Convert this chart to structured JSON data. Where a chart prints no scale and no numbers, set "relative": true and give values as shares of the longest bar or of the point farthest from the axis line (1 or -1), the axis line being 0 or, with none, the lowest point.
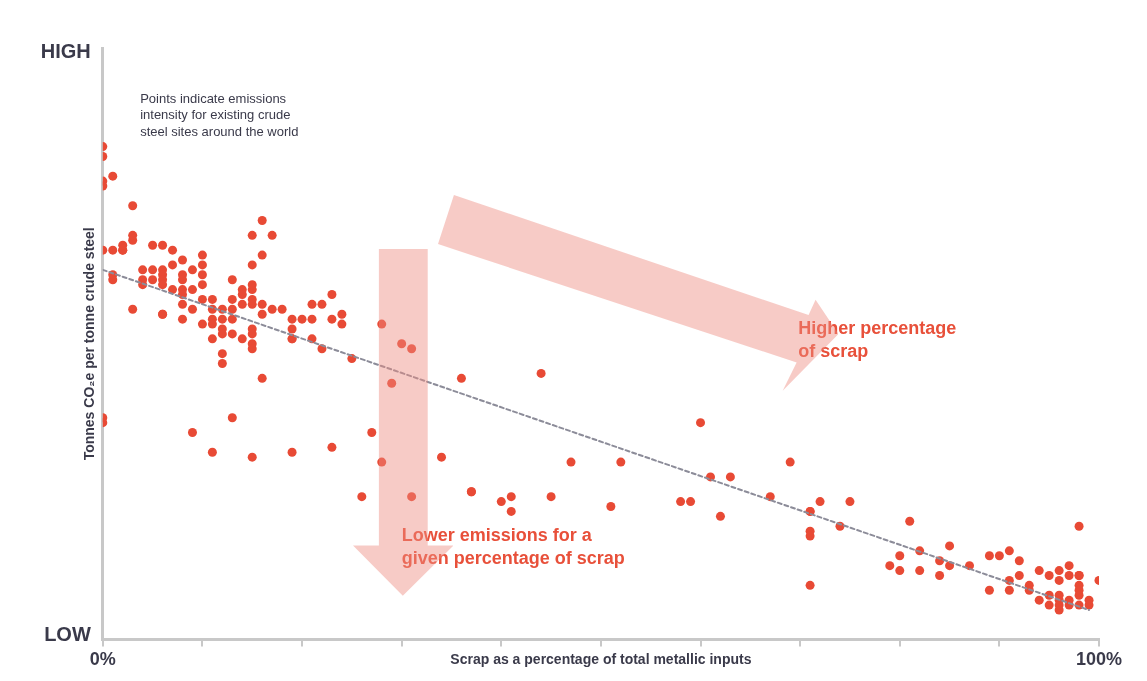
{
  "chart_data": {
    "type": "scatter",
    "xlabel": "Scrap as a percentage of total metallic inputs",
    "ylabel": "Tonnes CO₂e per tonne crude steel",
    "relative": true,
    "xlim": [
      0,
      100
    ],
    "xticks": [
      {
        "value": 0,
        "label": "0%"
      },
      {
        "value": 10,
        "label": null
      },
      {
        "value": 20,
        "label": null
      },
      {
        "value": 30,
        "label": null
      },
      {
        "value": 40,
        "label": null
      },
      {
        "value": 50,
        "label": null
      },
      {
        "value": 60,
        "label": null
      },
      {
        "value": 70,
        "label": null
      },
      {
        "value": 80,
        "label": null
      },
      {
        "value": 90,
        "label": null
      },
      {
        "value": 100,
        "label": "100%"
      }
    ],
    "grid": false,
    "legend": false,
    "marker": "circle",
    "annotations": [
      "HIGH",
      "LOW",
      "Points indicate emissions intensity for existing crude steel sites around the world",
      "Higher percentage of scrap",
      "Lower emissions for a given percentage of scrap"
    ],
    "series": [
      {
        "color": "#e84a35",
        "x": [
          0,
          0,
          0,
          0,
          1,
          3,
          0,
          1,
          2,
          2,
          2,
          3,
          3,
          5,
          6,
          7,
          8,
          7,
          10,
          10,
          9,
          10,
          4,
          1,
          1,
          4,
          5,
          6,
          6,
          6,
          4,
          3,
          5,
          6,
          7,
          8,
          8,
          8,
          8,
          8,
          8,
          6,
          6,
          9,
          10,
          10,
          9,
          11,
          11,
          11,
          12,
          13,
          13,
          12,
          13,
          10,
          11,
          12,
          12,
          13,
          11,
          12,
          12,
          14,
          14,
          13,
          14,
          15,
          15,
          15,
          15,
          16,
          17,
          16,
          15,
          15,
          16,
          16,
          17,
          18,
          19,
          20,
          21,
          19,
          19,
          19,
          21,
          22,
          21,
          22,
          23,
          23,
          24,
          24,
          25,
          15,
          15,
          15,
          15,
          14,
          16,
          28,
          30,
          31,
          29,
          36,
          44,
          27,
          28,
          34,
          26,
          31,
          37,
          37,
          41,
          40,
          41,
          45,
          47,
          52,
          51,
          60,
          58,
          59,
          61,
          63,
          62,
          67,
          11,
          13,
          9,
          15,
          19,
          23,
          0,
          0,
          69,
          71,
          71,
          72,
          75,
          71,
          71,
          71,
          74,
          81,
          82,
          85,
          80,
          79,
          80,
          82,
          84,
          85,
          84,
          87,
          89,
          90,
          91,
          92,
          92,
          91,
          89,
          91,
          94,
          93,
          93,
          98,
          97,
          95,
          96,
          96,
          97,
          98,
          98,
          98,
          98,
          100,
          94,
          95,
          95,
          96,
          96,
          97,
          98,
          96,
          96,
          97,
          98,
          99,
          99
        ],
        "values": [
          1.0,
          0.98,
          0.93,
          0.92,
          0.94,
          0.88,
          0.79,
          0.79,
          0.79,
          0.79,
          0.8,
          0.81,
          0.82,
          0.8,
          0.8,
          0.79,
          0.77,
          0.76,
          0.78,
          0.76,
          0.75,
          0.74,
          0.75,
          0.73,
          0.74,
          0.73,
          0.75,
          0.75,
          0.74,
          0.73,
          0.72,
          0.67,
          0.73,
          0.72,
          0.71,
          0.74,
          0.73,
          0.71,
          0.7,
          0.68,
          0.65,
          0.66,
          0.66,
          0.71,
          0.72,
          0.69,
          0.67,
          0.69,
          0.67,
          0.65,
          0.67,
          0.67,
          0.73,
          0.65,
          0.65,
          0.64,
          0.64,
          0.63,
          0.62,
          0.62,
          0.61,
          0.58,
          0.56,
          0.71,
          0.7,
          0.69,
          0.68,
          0.71,
          0.72,
          0.76,
          0.82,
          0.85,
          0.82,
          0.78,
          0.69,
          0.68,
          0.68,
          0.66,
          0.67,
          0.67,
          0.65,
          0.65,
          0.65,
          0.63,
          0.61,
          0.61,
          0.61,
          0.59,
          0.68,
          0.68,
          0.7,
          0.65,
          0.66,
          0.64,
          0.57,
          0.63,
          0.62,
          0.6,
          0.59,
          0.61,
          0.53,
          0.64,
          0.6,
          0.59,
          0.52,
          0.53,
          0.54,
          0.42,
          0.36,
          0.37,
          0.29,
          0.29,
          0.3,
          0.3,
          0.29,
          0.28,
          0.26,
          0.29,
          0.36,
          0.36,
          0.27,
          0.44,
          0.28,
          0.28,
          0.33,
          0.33,
          0.25,
          0.29,
          0.38,
          0.45,
          0.42,
          0.37,
          0.38,
          0.39,
          0.45,
          0.44,
          0.36,
          0.26,
          0.26,
          0.28,
          0.28,
          0.22,
          0.21,
          0.11,
          0.23,
          0.24,
          0.18,
          0.19,
          0.17,
          0.15,
          0.14,
          0.14,
          0.16,
          0.15,
          0.13,
          0.15,
          0.17,
          0.17,
          0.18,
          0.16,
          0.13,
          0.12,
          0.1,
          0.1,
          0.14,
          0.11,
          0.1,
          0.23,
          0.15,
          0.13,
          0.14,
          0.12,
          0.13,
          0.13,
          0.13,
          0.11,
          0.1,
          0.12,
          0.08,
          0.07,
          0.09,
          0.08,
          0.09,
          0.08,
          0.09,
          0.06,
          0.07,
          0.07,
          0.07,
          0.08,
          0.07
        ]
      },
      {
        "type": "line",
        "color": "#8c8c99",
        "line_style": "dashed",
        "marker": "none",
        "x": [
          0,
          99
        ],
        "values": [
          0.75,
          0.06
        ]
      }
    ]
  }
}
